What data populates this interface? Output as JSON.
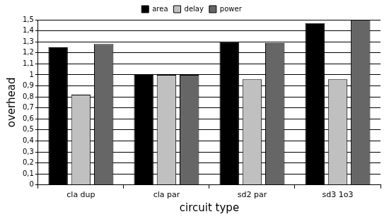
{
  "chart_data": {
    "type": "bar",
    "x_label": "circuit type",
    "y_label": "overhead",
    "categories": [
      "cla dup",
      "cla par",
      "sd2 par",
      "sd3 1o3"
    ],
    "series": [
      {
        "name": "area",
        "color": "#000000",
        "values": [
          1.25,
          1.0,
          1.3,
          1.47
        ]
      },
      {
        "name": "delay",
        "color": "#c0c0c0",
        "values": [
          0.82,
          1.0,
          0.96,
          0.96
        ]
      },
      {
        "name": "power",
        "color": "#666666",
        "values": [
          1.28,
          1.0,
          1.29,
          1.5
        ]
      }
    ],
    "ylim": [
      0,
      1.5
    ],
    "yticks": [
      0,
      {
        "value": 0.1,
        "label": "0,1"
      },
      {
        "value": 0.2,
        "label": "0,2"
      },
      {
        "value": 0.3,
        "label": "0,3"
      },
      {
        "value": 0.4,
        "label": "0,4"
      },
      {
        "value": 0.5,
        "label": "0,5"
      },
      {
        "value": 0.6,
        "label": "0,6"
      },
      {
        "value": 0.7,
        "label": "0,7"
      },
      {
        "value": 0.8,
        "label": "0,8"
      },
      {
        "value": 0.9,
        "label": "0,9"
      },
      1,
      {
        "value": 1.1,
        "label": "1,1"
      },
      {
        "value": 1.2,
        "label": "1,2"
      },
      {
        "value": 1.3,
        "label": "1,3"
      },
      {
        "value": 1.4,
        "label": "1,4"
      },
      {
        "value": 1.5,
        "label": "1,5"
      }
    ],
    "grid": true,
    "legend": "top"
  }
}
